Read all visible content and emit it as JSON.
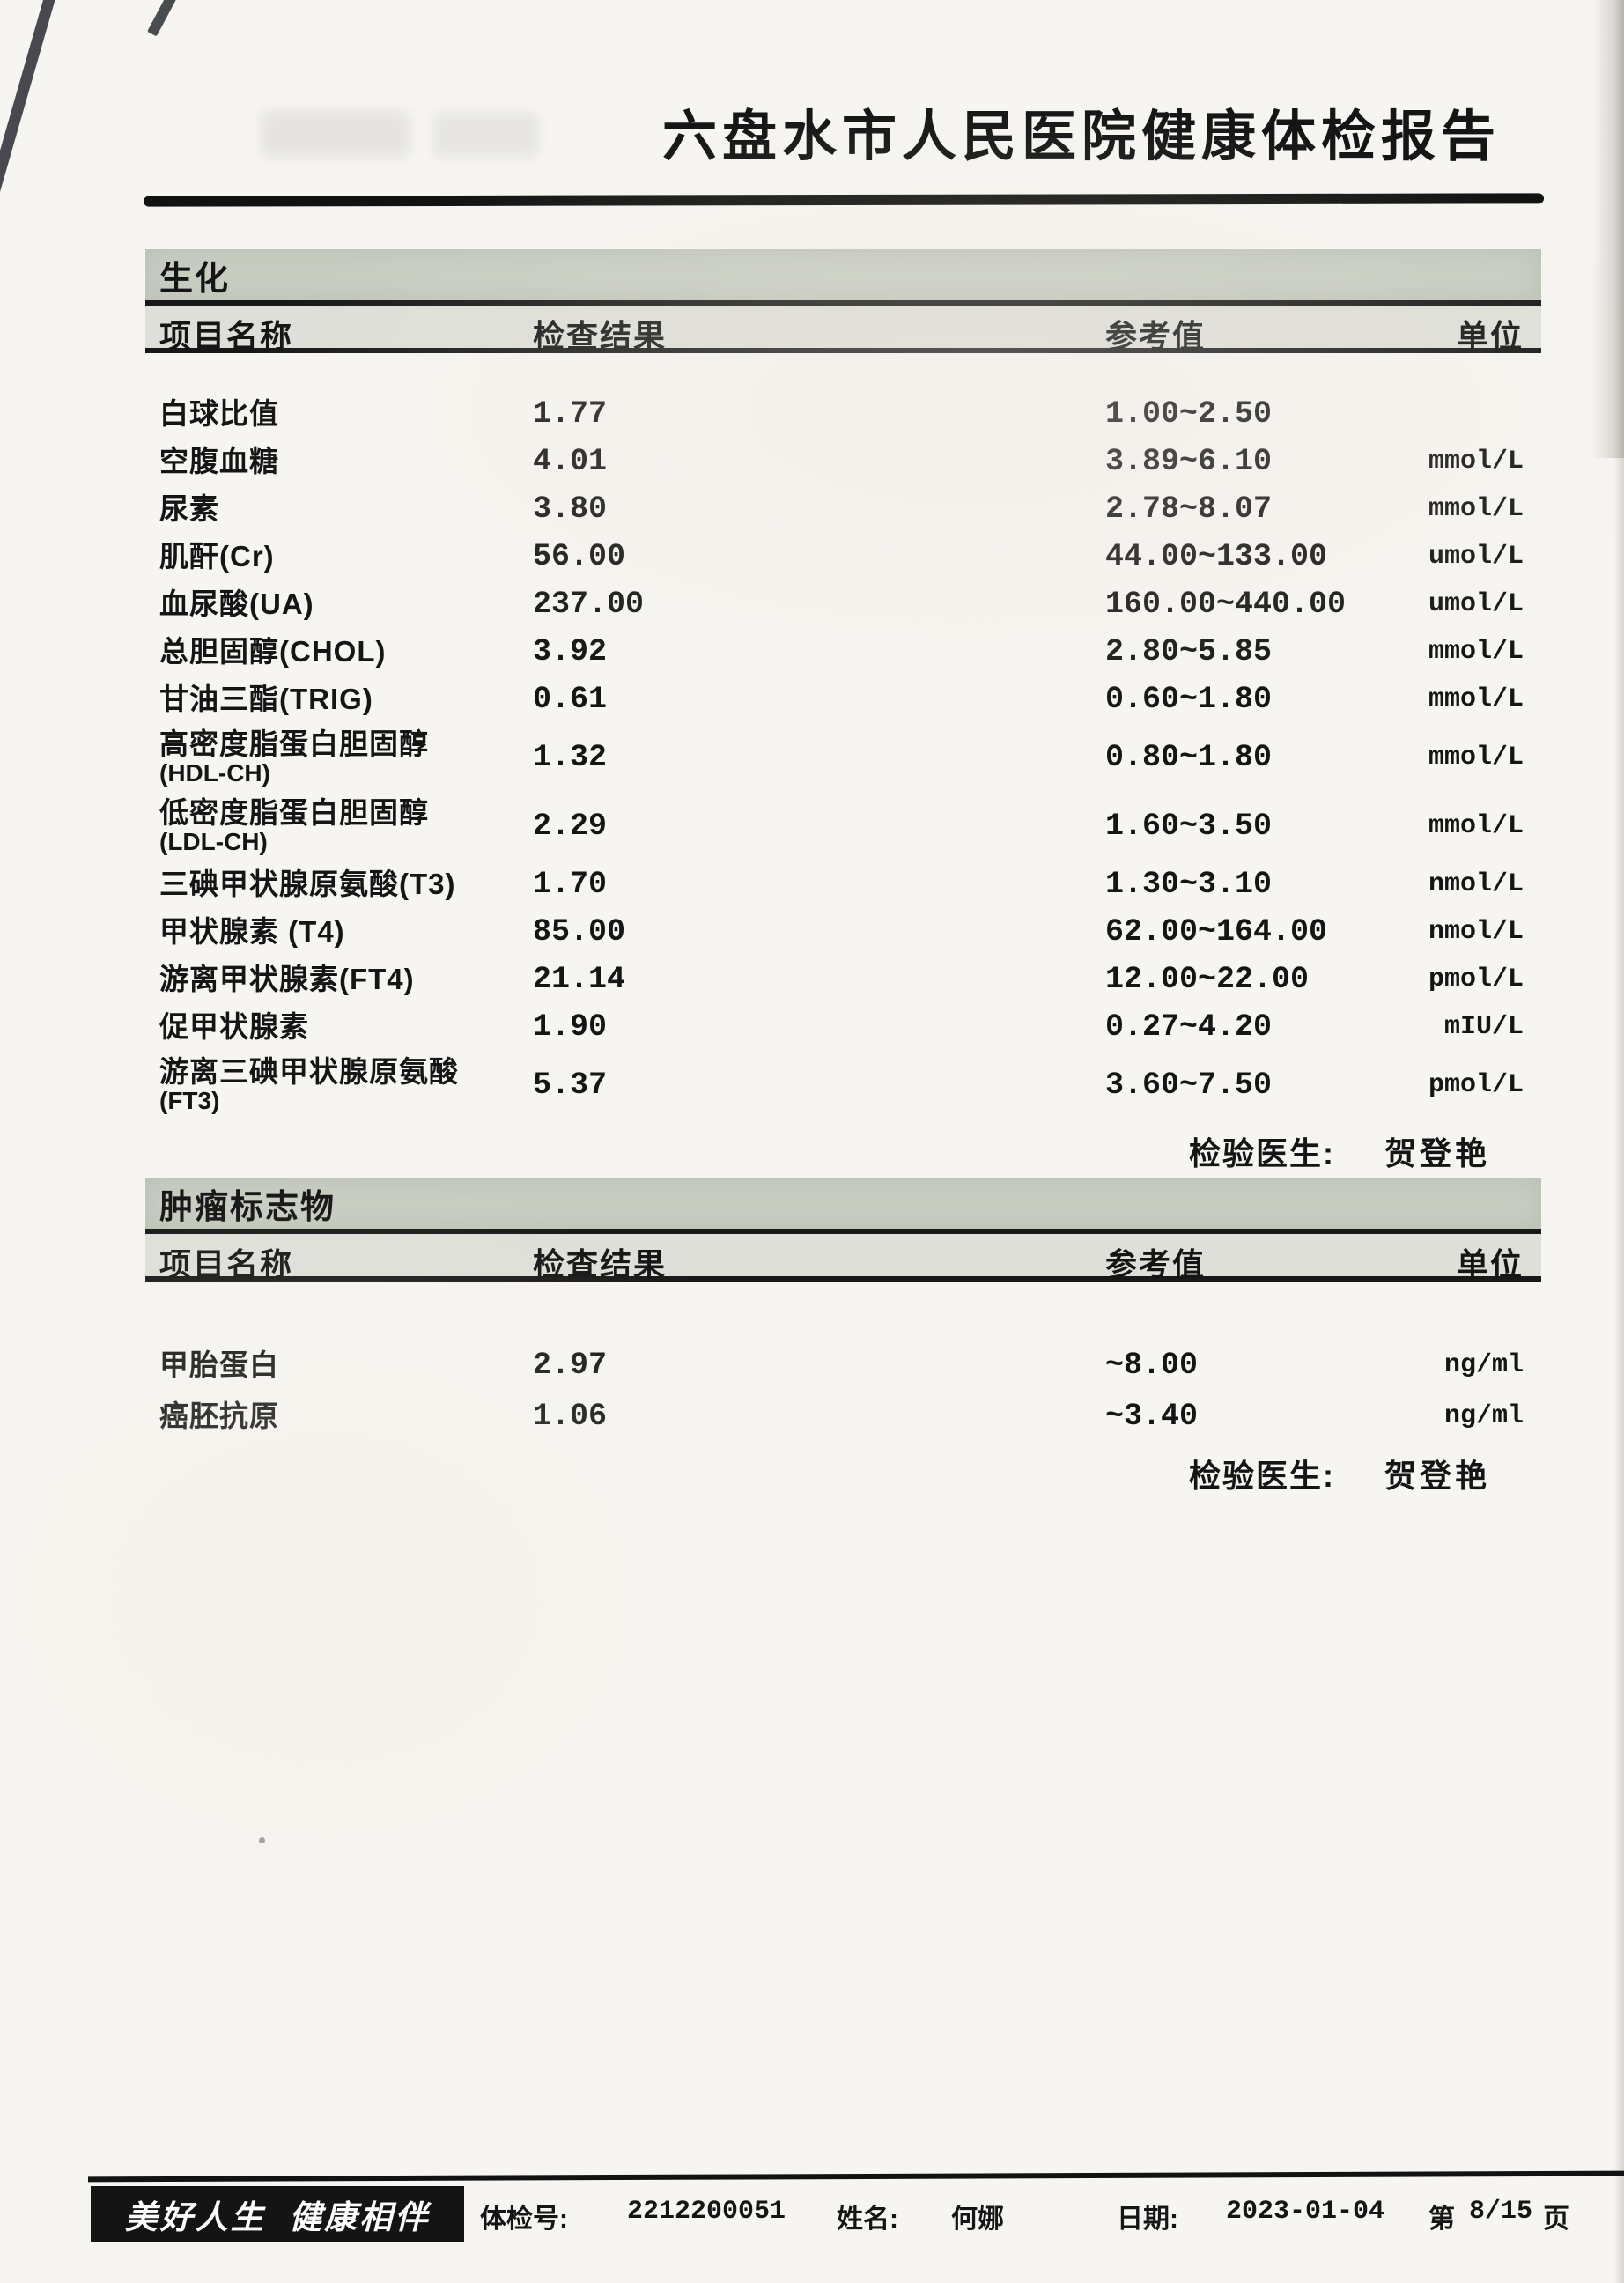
{
  "page": {
    "title": "六盘水市人民医院健康体检报告"
  },
  "sections": [
    {
      "name": "生化",
      "headers": [
        "项目名称",
        "检查结果",
        "参考值",
        "单位"
      ],
      "rows": [
        {
          "item": "白球比值",
          "result": "1.77",
          "ref": "1.00~2.50",
          "unit": ""
        },
        {
          "item": "空腹血糖",
          "result": "4.01",
          "ref": "3.89~6.10",
          "unit": "mmol/L"
        },
        {
          "item": "尿素",
          "result": "3.80",
          "ref": "2.78~8.07",
          "unit": "mmol/L"
        },
        {
          "item": "肌酐(Cr)",
          "result": "56.00",
          "ref": "44.00~133.00",
          "unit": "umol/L"
        },
        {
          "item": "血尿酸(UA)",
          "result": "237.00",
          "ref": "160.00~440.00",
          "unit": "umol/L"
        },
        {
          "item": "总胆固醇(CHOL)",
          "result": "3.92",
          "ref": "2.80~5.85",
          "unit": "mmol/L"
        },
        {
          "item": "甘油三酯(TRIG)",
          "result": "0.61",
          "ref": "0.60~1.80",
          "unit": "mmol/L"
        },
        {
          "item": "高密度脂蛋白胆固醇",
          "item2": "(HDL-CH)",
          "result": "1.32",
          "ref": "0.80~1.80",
          "unit": "mmol/L"
        },
        {
          "item": "低密度脂蛋白胆固醇",
          "item2": "(LDL-CH)",
          "result": "2.29",
          "ref": "1.60~3.50",
          "unit": "mmol/L"
        },
        {
          "item": "三碘甲状腺原氨酸(T3)",
          "result": "1.70",
          "ref": "1.30~3.10",
          "unit": "nmol/L"
        },
        {
          "item": "甲状腺素 (T4)",
          "result": "85.00",
          "ref": "62.00~164.00",
          "unit": "nmol/L"
        },
        {
          "item": "游离甲状腺素(FT4)",
          "result": "21.14",
          "ref": "12.00~22.00",
          "unit": "pmol/L"
        },
        {
          "item": "促甲状腺素",
          "result": "1.90",
          "ref": "0.27~4.20",
          "unit": "mIU/L"
        },
        {
          "item": "游离三碘甲状腺原氨酸",
          "item2": "(FT3)",
          "result": "5.37",
          "ref": "3.60~7.50",
          "unit": "pmol/L"
        }
      ],
      "doctor_label": "检验医生:",
      "doctor_name": "贺登艳"
    },
    {
      "name": "肿瘤标志物",
      "headers": [
        "项目名称",
        "检查结果",
        "参考值",
        "单位"
      ],
      "rows": [
        {
          "item": "甲胎蛋白",
          "result": "2.97",
          "ref": "~8.00",
          "unit": "ng/ml"
        },
        {
          "item": "癌胚抗原",
          "result": "1.06",
          "ref": "~3.40",
          "unit": "ng/ml"
        }
      ],
      "doctor_label": "检验医生:",
      "doctor_name": "贺登艳"
    }
  ],
  "footer": {
    "slogan": "美好人生  健康相伴",
    "exam_no_label": "体检号:",
    "exam_no": "2212200051",
    "name_label": "姓名:",
    "name": "何娜",
    "date_label": "日期:",
    "date": "2023-01-04",
    "page_label": "第",
    "page_number": "8/15",
    "page_suffix": "页"
  }
}
